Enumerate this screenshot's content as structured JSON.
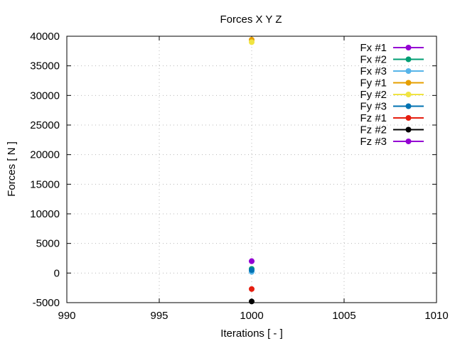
{
  "chart_data": {
    "type": "scatter",
    "title": "Forces X Y Z",
    "xlabel": "Iterations [ - ]",
    "ylabel": "Forces [ N ]",
    "xlim": [
      990,
      1010
    ],
    "ylim": [
      -5000,
      40000
    ],
    "xticks": [
      990,
      995,
      1000,
      1005,
      1010
    ],
    "yticks": [
      -5000,
      0,
      5000,
      10000,
      15000,
      20000,
      25000,
      30000,
      35000,
      40000
    ],
    "grid": true,
    "legend_position": "top-right",
    "series": [
      {
        "name": "Fx #1",
        "color": "#9400d3",
        "x": [
          1000
        ],
        "y": [
          2000
        ]
      },
      {
        "name": "Fx #2",
        "color": "#009e73",
        "x": [
          1000
        ],
        "y": [
          700
        ]
      },
      {
        "name": "Fx #3",
        "color": "#56b4e9",
        "x": [
          1000
        ],
        "y": [
          200
        ]
      },
      {
        "name": "Fy #1",
        "color": "#e69f00",
        "x": [
          1000
        ],
        "y": [
          39400
        ]
      },
      {
        "name": "Fy #2",
        "color": "#f0e442",
        "x": [
          1000
        ],
        "y": [
          39000
        ]
      },
      {
        "name": "Fy #3",
        "color": "#0072b2",
        "x": [
          1000
        ],
        "y": [
          500
        ]
      },
      {
        "name": "Fz #1",
        "color": "#e51e10",
        "x": [
          1000
        ],
        "y": [
          -2700
        ]
      },
      {
        "name": "Fz #2",
        "color": "#000000",
        "x": [
          1000
        ],
        "y": [
          -4800
        ]
      },
      {
        "name": "Fz #3",
        "color": "#9400d3",
        "x": [
          1000
        ],
        "y": [
          2000
        ]
      }
    ]
  }
}
